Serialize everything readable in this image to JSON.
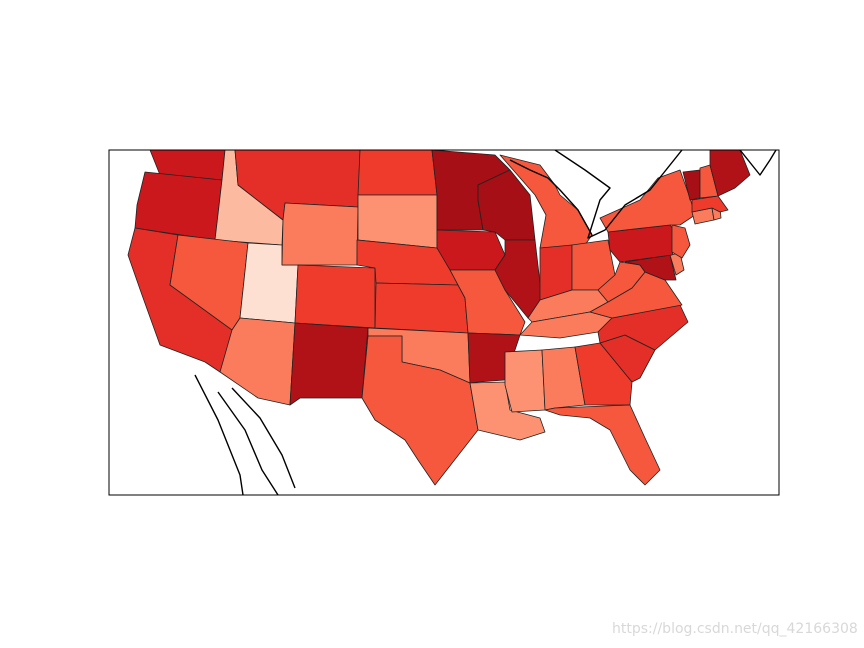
{
  "map": {
    "type": "choropleth",
    "region": "contiguous United States",
    "colormap": "Reds",
    "palette": {
      "r1": "#fee0d2",
      "r2": "#fcbba1",
      "r3": "#fc9272",
      "r4": "#fb7c5c",
      "r5": "#f6583e",
      "r6": "#ef3b2c",
      "r7": "#e32f27",
      "r8": "#cb181d",
      "r9": "#b11218",
      "r10": "#a50f15"
    },
    "states": [
      {
        "name": "Washington",
        "shade": "r8"
      },
      {
        "name": "Oregon",
        "shade": "r8"
      },
      {
        "name": "California",
        "shade": "r7"
      },
      {
        "name": "Idaho",
        "shade": "r2"
      },
      {
        "name": "Nevada",
        "shade": "r5"
      },
      {
        "name": "Utah",
        "shade": "r1"
      },
      {
        "name": "Arizona",
        "shade": "r4"
      },
      {
        "name": "Montana",
        "shade": "r7"
      },
      {
        "name": "Wyoming",
        "shade": "r4"
      },
      {
        "name": "Colorado",
        "shade": "r6"
      },
      {
        "name": "New Mexico",
        "shade": "r9"
      },
      {
        "name": "North Dakota",
        "shade": "r6"
      },
      {
        "name": "South Dakota",
        "shade": "r3"
      },
      {
        "name": "Nebraska",
        "shade": "r6"
      },
      {
        "name": "Kansas",
        "shade": "r6"
      },
      {
        "name": "Oklahoma",
        "shade": "r4"
      },
      {
        "name": "Texas",
        "shade": "r5"
      },
      {
        "name": "Minnesota",
        "shade": "r10"
      },
      {
        "name": "Iowa",
        "shade": "r8"
      },
      {
        "name": "Missouri",
        "shade": "r5"
      },
      {
        "name": "Arkansas",
        "shade": "r9"
      },
      {
        "name": "Louisiana",
        "shade": "r3"
      },
      {
        "name": "Wisconsin",
        "shade": "r10"
      },
      {
        "name": "Illinois",
        "shade": "r9"
      },
      {
        "name": "Michigan",
        "shade": "r5"
      },
      {
        "name": "Indiana",
        "shade": "r7"
      },
      {
        "name": "Ohio",
        "shade": "r5"
      },
      {
        "name": "Kentucky",
        "shade": "r4"
      },
      {
        "name": "Tennessee",
        "shade": "r4"
      },
      {
        "name": "Mississippi",
        "shade": "r3"
      },
      {
        "name": "Alabama",
        "shade": "r4"
      },
      {
        "name": "Georgia",
        "shade": "r6"
      },
      {
        "name": "Florida",
        "shade": "r5"
      },
      {
        "name": "South Carolina",
        "shade": "r7"
      },
      {
        "name": "North Carolina",
        "shade": "r7"
      },
      {
        "name": "Virginia",
        "shade": "r5"
      },
      {
        "name": "West Virginia",
        "shade": "r5"
      },
      {
        "name": "Maryland",
        "shade": "r9"
      },
      {
        "name": "Delaware",
        "shade": "r4"
      },
      {
        "name": "Pennsylvania",
        "shade": "r8"
      },
      {
        "name": "New Jersey",
        "shade": "r5"
      },
      {
        "name": "New York",
        "shade": "r5"
      },
      {
        "name": "Connecticut",
        "shade": "r4"
      },
      {
        "name": "Rhode Island",
        "shade": "r4"
      },
      {
        "name": "Massachusetts",
        "shade": "r6"
      },
      {
        "name": "Vermont",
        "shade": "r10"
      },
      {
        "name": "New Hampshire",
        "shade": "r5"
      },
      {
        "name": "Maine",
        "shade": "r9"
      }
    ]
  },
  "watermark": "https://blog.csdn.net/qq_42166308"
}
